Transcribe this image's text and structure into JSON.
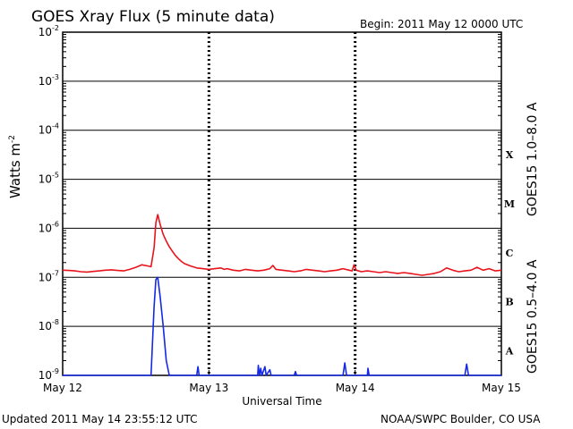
{
  "chart_data": {
    "type": "line",
    "title": "GOES Xray Flux (5 minute data)",
    "begin": "Begin:  2011 May 12 0000 UTC",
    "ylabel": "Watts m",
    "ylabel_sup": "-2",
    "xlabel": "Universal Time",
    "y_scale": "log",
    "ylim": [
      1e-09,
      0.01
    ],
    "xlim": [
      0,
      72
    ],
    "x_unit": "hours since 2011 May 12 0000 UTC",
    "x_ticks": [
      {
        "x": 0,
        "label": "May 12"
      },
      {
        "x": 24,
        "label": "May 13"
      },
      {
        "x": 48,
        "label": "May 14"
      },
      {
        "x": 72,
        "label": "May 15"
      }
    ],
    "y_ticks": [
      {
        "exp": -2
      },
      {
        "exp": -3
      },
      {
        "exp": -4
      },
      {
        "exp": -5
      },
      {
        "exp": -6
      },
      {
        "exp": -7
      },
      {
        "exp": -8
      },
      {
        "exp": -9
      }
    ],
    "flare_classes": [
      {
        "label": "X",
        "exp": -4
      },
      {
        "label": "M",
        "exp": -5
      },
      {
        "label": "C",
        "exp": -6
      },
      {
        "label": "B",
        "exp": -7
      },
      {
        "label": "A",
        "exp": -8
      }
    ],
    "series": [
      {
        "name": "GOES15 1.0–8.0 A",
        "color": "#e8141c",
        "points": [
          [
            0,
            1.4e-07
          ],
          [
            1,
            1.38e-07
          ],
          [
            2,
            1.35e-07
          ],
          [
            3,
            1.3e-07
          ],
          [
            4,
            1.28e-07
          ],
          [
            5,
            1.32e-07
          ],
          [
            6,
            1.35e-07
          ],
          [
            7,
            1.4e-07
          ],
          [
            8,
            1.42e-07
          ],
          [
            9,
            1.38e-07
          ],
          [
            10,
            1.35e-07
          ],
          [
            11,
            1.45e-07
          ],
          [
            12,
            1.6e-07
          ],
          [
            13,
            1.8e-07
          ],
          [
            14,
            1.7e-07
          ],
          [
            14.5,
            1.65e-07
          ],
          [
            15,
            4e-07
          ],
          [
            15.3,
            1.3e-06
          ],
          [
            15.6,
            1.9e-06
          ],
          [
            16,
            1.2e-06
          ],
          [
            16.5,
            7.5e-07
          ],
          [
            17,
            5.5e-07
          ],
          [
            17.5,
            4.2e-07
          ],
          [
            18,
            3.4e-07
          ],
          [
            18.5,
            2.8e-07
          ],
          [
            19,
            2.4e-07
          ],
          [
            19.5,
            2.1e-07
          ],
          [
            20,
            1.9e-07
          ],
          [
            21,
            1.7e-07
          ],
          [
            22,
            1.55e-07
          ],
          [
            23,
            1.5e-07
          ],
          [
            24,
            1.45e-07
          ],
          [
            25,
            1.5e-07
          ],
          [
            26,
            1.55e-07
          ],
          [
            26.5,
            1.45e-07
          ],
          [
            27,
            1.5e-07
          ],
          [
            28,
            1.4e-07
          ],
          [
            29,
            1.35e-07
          ],
          [
            30,
            1.45e-07
          ],
          [
            31,
            1.4e-07
          ],
          [
            32,
            1.35e-07
          ],
          [
            33,
            1.4e-07
          ],
          [
            34,
            1.5e-07
          ],
          [
            34.5,
            1.75e-07
          ],
          [
            35,
            1.45e-07
          ],
          [
            36,
            1.4e-07
          ],
          [
            37,
            1.35e-07
          ],
          [
            38,
            1.3e-07
          ],
          [
            39,
            1.35e-07
          ],
          [
            40,
            1.45e-07
          ],
          [
            41,
            1.4e-07
          ],
          [
            42,
            1.35e-07
          ],
          [
            43,
            1.3e-07
          ],
          [
            44,
            1.35e-07
          ],
          [
            45,
            1.4e-07
          ],
          [
            46,
            1.5e-07
          ],
          [
            47,
            1.4e-07
          ],
          [
            47.5,
            1.35e-07
          ],
          [
            47.8,
            1.8e-07
          ],
          [
            48.2,
            1.4e-07
          ],
          [
            49,
            1.3e-07
          ],
          [
            50,
            1.35e-07
          ],
          [
            51,
            1.3e-07
          ],
          [
            52,
            1.25e-07
          ],
          [
            53,
            1.3e-07
          ],
          [
            54,
            1.25e-07
          ],
          [
            55,
            1.2e-07
          ],
          [
            56,
            1.25e-07
          ],
          [
            57,
            1.2e-07
          ],
          [
            58,
            1.15e-07
          ],
          [
            59,
            1.1e-07
          ],
          [
            60,
            1.15e-07
          ],
          [
            61,
            1.2e-07
          ],
          [
            62,
            1.3e-07
          ],
          [
            63,
            1.55e-07
          ],
          [
            64,
            1.4e-07
          ],
          [
            65,
            1.3e-07
          ],
          [
            66,
            1.35e-07
          ],
          [
            67,
            1.4e-07
          ],
          [
            68,
            1.6e-07
          ],
          [
            69,
            1.4e-07
          ],
          [
            70,
            1.5e-07
          ],
          [
            71,
            1.35e-07
          ],
          [
            72,
            1.4e-07
          ]
        ]
      },
      {
        "name": "GOES15 0.5–4.0 A",
        "color": "#1428e6",
        "points": [
          [
            0,
            1e-09
          ],
          [
            14.5,
            1e-09
          ],
          [
            15,
            2.5e-08
          ],
          [
            15.3,
            9e-08
          ],
          [
            15.6,
            1e-07
          ],
          [
            16,
            4e-08
          ],
          [
            16.5,
            1e-08
          ],
          [
            17,
            2e-09
          ],
          [
            17.5,
            1e-09
          ],
          [
            22,
            1e-09
          ],
          [
            22.2,
            1.5e-09
          ],
          [
            22.4,
            1e-09
          ],
          [
            32,
            1e-09
          ],
          [
            32.1,
            1.6e-09
          ],
          [
            32.3,
            1e-09
          ],
          [
            32.5,
            1.4e-09
          ],
          [
            32.7,
            1e-09
          ],
          [
            33.2,
            1.5e-09
          ],
          [
            33.4,
            1e-09
          ],
          [
            34,
            1.3e-09
          ],
          [
            34.2,
            1e-09
          ],
          [
            38,
            1e-09
          ],
          [
            38.2,
            1.2e-09
          ],
          [
            38.4,
            1e-09
          ],
          [
            46,
            1e-09
          ],
          [
            46.3,
            1.8e-09
          ],
          [
            46.6,
            1e-09
          ],
          [
            50,
            1e-09
          ],
          [
            50.1,
            1.4e-09
          ],
          [
            50.3,
            1e-09
          ],
          [
            66,
            1e-09
          ],
          [
            66.3,
            1.7e-09
          ],
          [
            66.6,
            1e-09
          ],
          [
            72,
            1e-09
          ]
        ]
      }
    ],
    "vertical_lines": [
      {
        "x": 24
      },
      {
        "x": 48
      }
    ],
    "grid": "horizontal lines at each decade; dashed day separators",
    "legend": "right side, rotated"
  },
  "footer": {
    "updated": "Updated 2011 May 14 23:55:12 UTC",
    "credit": "NOAA/SWPC Boulder, CO USA"
  }
}
